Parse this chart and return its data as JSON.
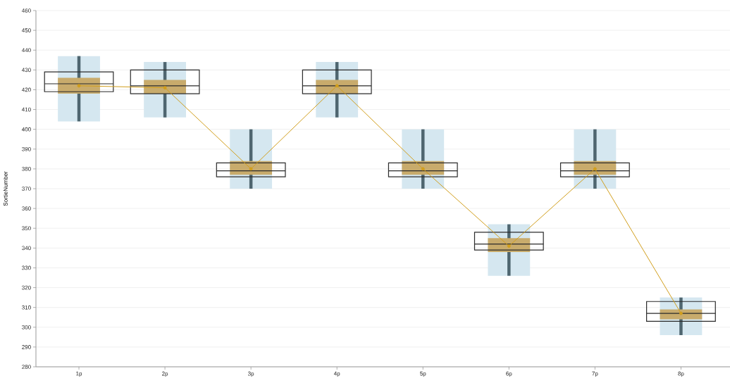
{
  "chart_data": {
    "type": "box",
    "ylabel": "SortieNumber",
    "categories": [
      "1p",
      "2p",
      "3p",
      "4p",
      "5p",
      "6p",
      "7p",
      "8p"
    ],
    "ylim": [
      280,
      460
    ],
    "yticks": [
      280,
      290,
      300,
      310,
      320,
      330,
      340,
      350,
      360,
      370,
      380,
      390,
      400,
      410,
      420,
      430,
      440,
      450,
      460
    ],
    "grid": "y",
    "marker": "circle",
    "series": [
      {
        "type": "bar",
        "color": "#d5e7f0",
        "base": [
          404,
          406,
          370,
          406,
          370,
          326,
          370,
          296
        ],
        "values": [
          33,
          28,
          30,
          28,
          30,
          26,
          30,
          19
        ]
      },
      {
        "type": "bar",
        "color": "#c8ab6c",
        "base": [
          418,
          418,
          377,
          418,
          377,
          338,
          377,
          304
        ],
        "values": [
          8,
          7,
          7,
          7,
          7,
          7,
          7,
          5
        ]
      },
      {
        "color": "#2b2b2b",
        "boxes": [
          {
            "low": 404,
            "q1": 419,
            "median": 423,
            "q3": 429,
            "high": 437
          },
          {
            "low": 406,
            "q1": 418,
            "median": 422,
            "q3": 430,
            "high": 434
          },
          {
            "low": 370,
            "q1": 376,
            "median": 379,
            "q3": 383,
            "high": 400
          },
          {
            "low": 406,
            "q1": 418,
            "median": 422,
            "q3": 430,
            "high": 434
          },
          {
            "low": 370,
            "q1": 376,
            "median": 379,
            "q3": 383,
            "high": 400
          },
          {
            "low": 326,
            "q1": 339,
            "median": 342,
            "q3": 348,
            "high": 352
          },
          {
            "low": 370,
            "q1": 376,
            "median": 379,
            "q3": 383,
            "high": 400
          },
          {
            "low": 296,
            "q1": 303,
            "median": 307,
            "q3": 313,
            "high": 315
          }
        ]
      },
      {
        "type": "line",
        "color": "#d19e1c",
        "values": [
          422,
          421,
          380,
          422,
          380,
          341,
          380,
          307
        ]
      }
    ]
  }
}
